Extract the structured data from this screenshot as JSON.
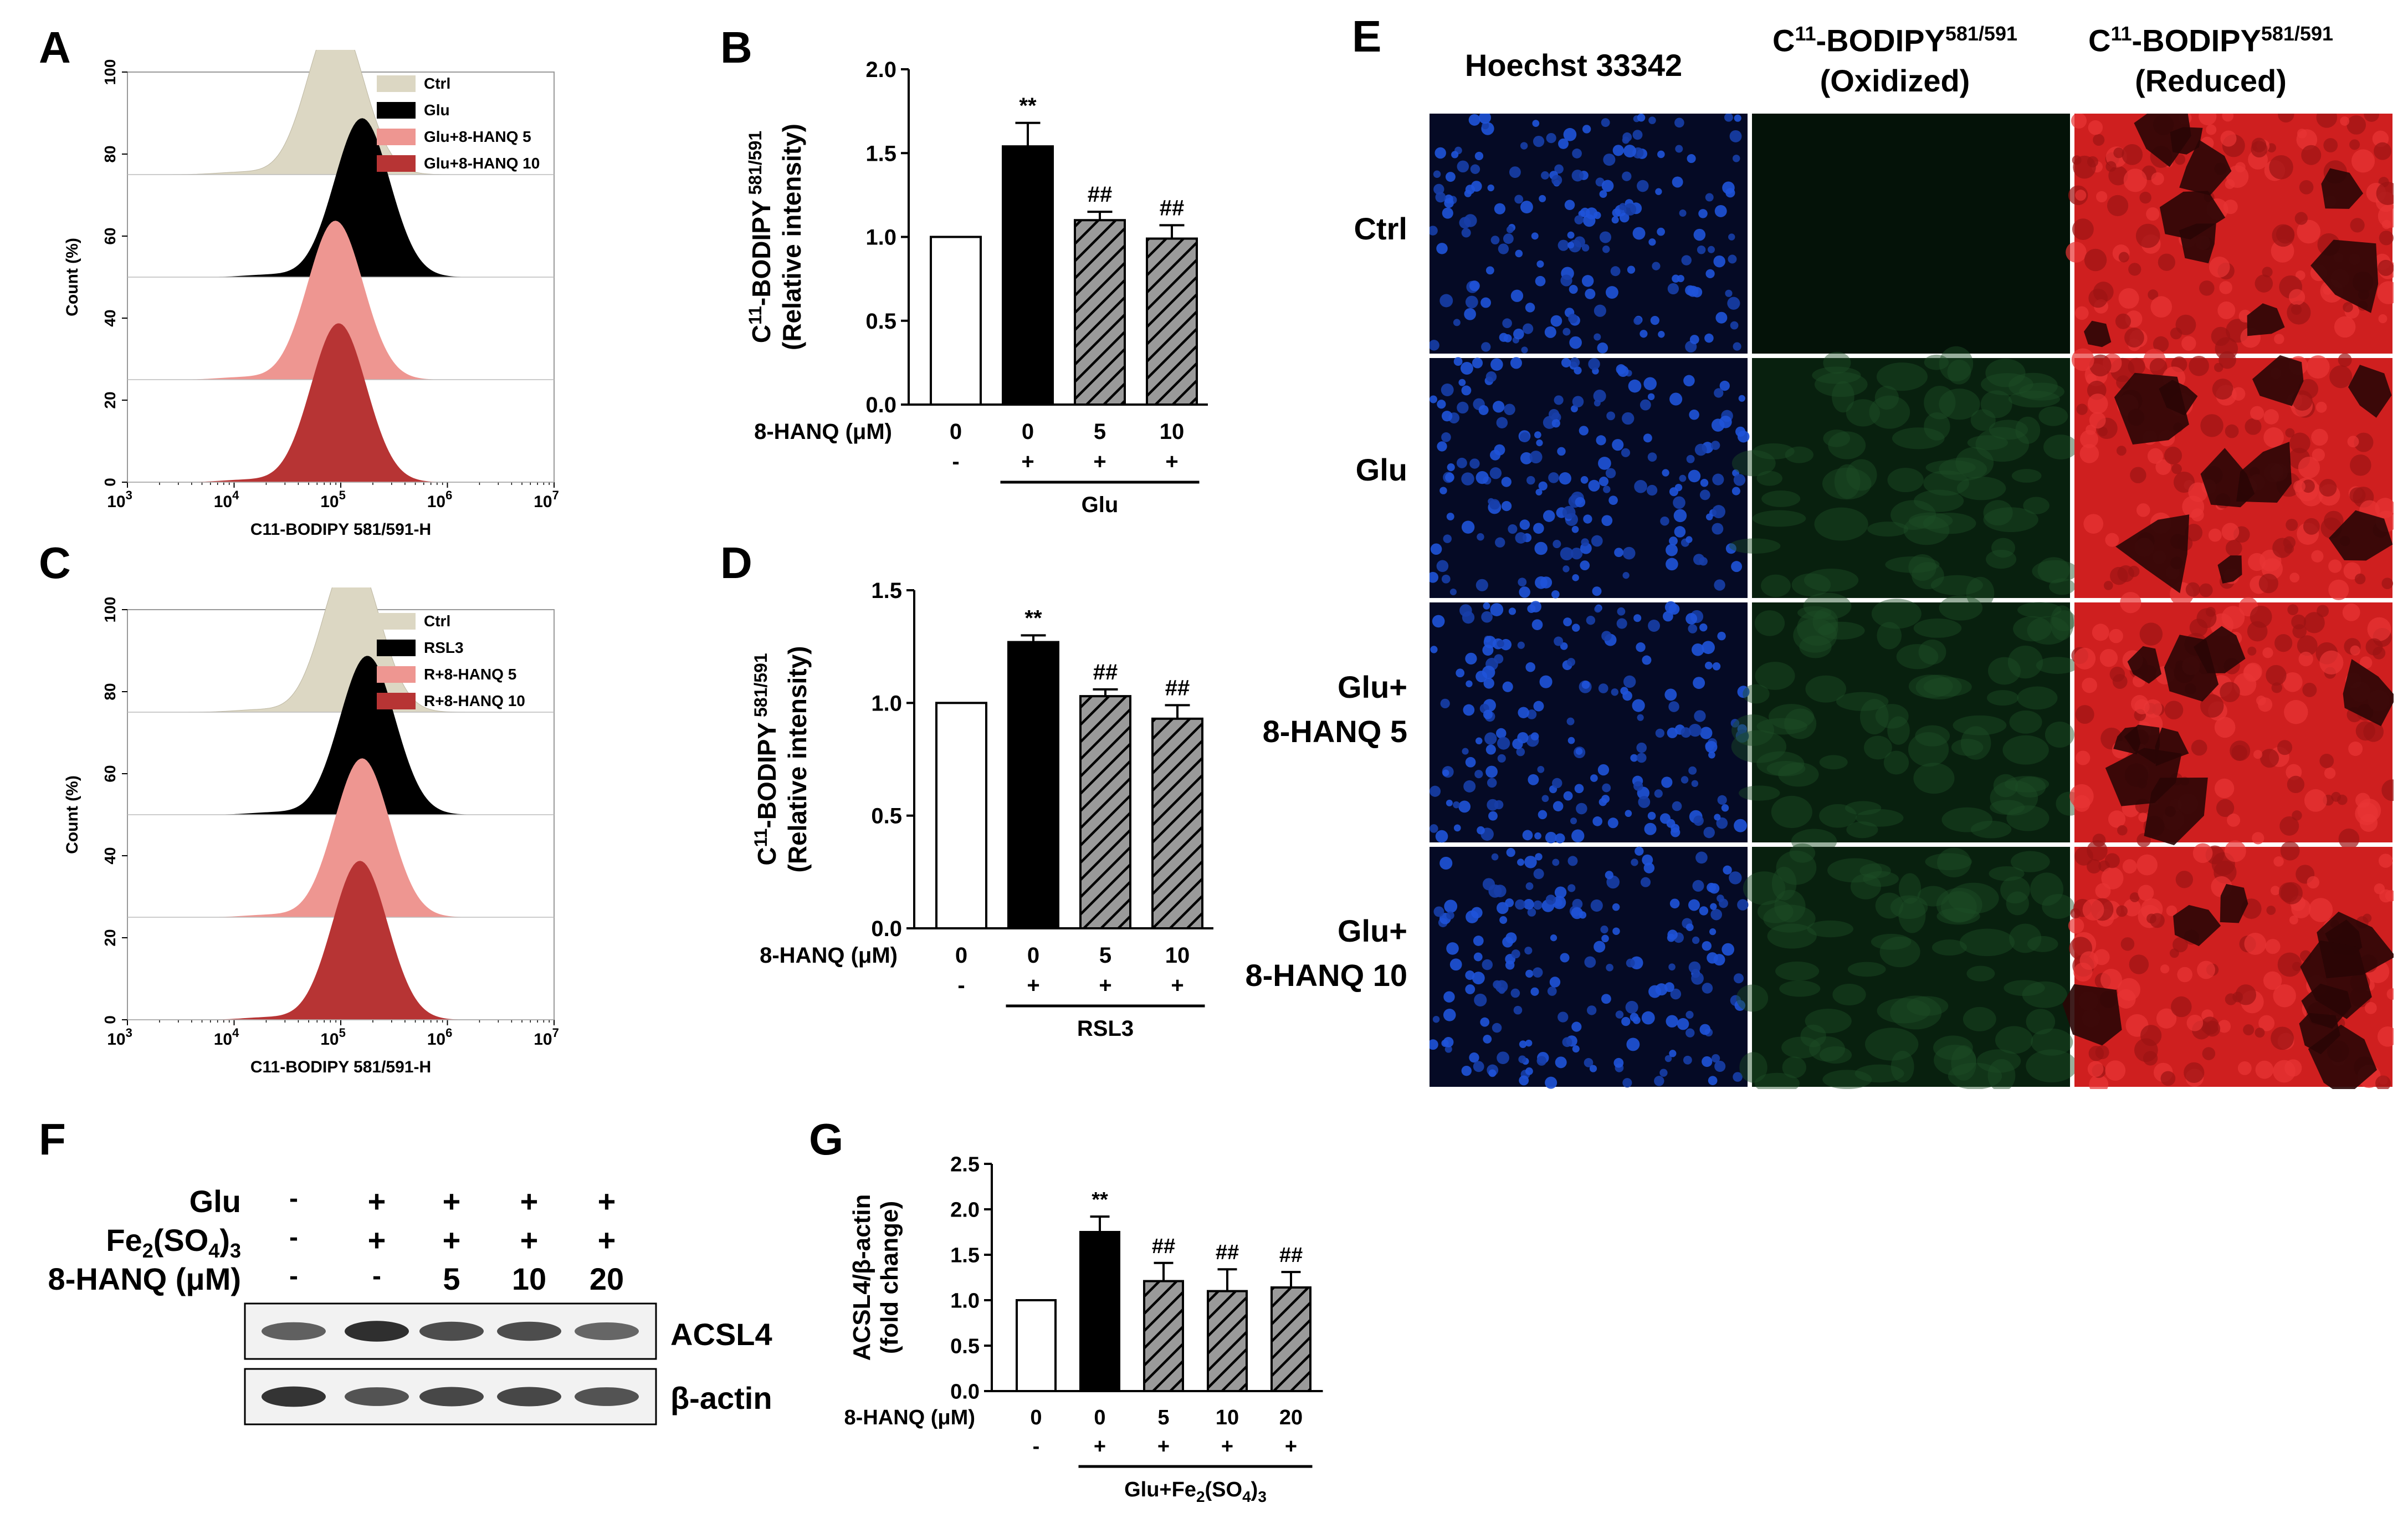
{
  "panels": {
    "A": "A",
    "B": "B",
    "C": "C",
    "D": "D",
    "E": "E",
    "F": "F",
    "G": "G"
  },
  "colors": {
    "ctrl": "#dcd7c3",
    "treat": "#000000",
    "low": "#ee9691",
    "high": "#b73434",
    "hatch_fill": "#9a9a9a"
  },
  "hist_A": {
    "xlabel": "C11-BODIPY 581/591-H",
    "ylabel": "Count (%)",
    "yticks": [
      "0",
      "20",
      "40",
      "60",
      "80",
      "100"
    ],
    "xtick_base": "10",
    "xtick_exps": [
      "3",
      "4",
      "5",
      "6",
      "7"
    ],
    "legend": [
      "Ctrl",
      "Glu",
      "Glu+8-HANQ 5",
      "Glu+8-HANQ 10"
    ],
    "peaks": [
      4.95,
      5.2,
      4.95,
      4.98
    ]
  },
  "hist_C": {
    "xlabel": "C11-BODIPY 581/591-H",
    "ylabel": "Count (%)",
    "yticks": [
      "0",
      "20",
      "40",
      "60",
      "80",
      "100"
    ],
    "xtick_base": "10",
    "xtick_exps": [
      "3",
      "4",
      "5",
      "6",
      "7"
    ],
    "legend": [
      "Ctrl",
      "RSL3",
      "R+8-HANQ 5",
      "R+8-HANQ 10"
    ],
    "peaks": [
      5.1,
      5.25,
      5.2,
      5.18
    ]
  },
  "chart_data": [
    {
      "type": "bar",
      "panel": "B",
      "ylabel_line1": "C",
      "ylabel_sup": "11",
      "ylabel_line1b": "-BODIPY",
      "ylabel_sup2": "581/591",
      "ylabel_line2": "(Relative intensity)",
      "yticks": [
        "0.0",
        "0.5",
        "1.0",
        "1.5",
        "2.0"
      ],
      "ylim": [
        0,
        2
      ],
      "row_label": "8-HANQ (μM)",
      "categories": [
        "0",
        "0",
        "5",
        "10"
      ],
      "values": [
        1.0,
        1.54,
        1.1,
        0.99
      ],
      "errors": [
        0,
        0.14,
        0.05,
        0.08
      ],
      "treatment_signs": [
        "-",
        "+",
        "+",
        "+"
      ],
      "treatment": "Glu",
      "annotations": [
        "",
        "**",
        "##",
        "##"
      ]
    },
    {
      "type": "bar",
      "panel": "D",
      "ylabel_line1": "C",
      "ylabel_sup": "11",
      "ylabel_line1b": "-BODIPY",
      "ylabel_sup2": "581/591",
      "ylabel_line2": "(Relative intensity)",
      "yticks": [
        "0.0",
        "0.5",
        "1.0",
        "1.5"
      ],
      "ylim": [
        0,
        1.5
      ],
      "row_label": "8-HANQ (μM)",
      "categories": [
        "0",
        "0",
        "5",
        "10"
      ],
      "values": [
        1.0,
        1.27,
        1.03,
        0.93
      ],
      "errors": [
        0,
        0.03,
        0.03,
        0.06
      ],
      "treatment_signs": [
        "-",
        "+",
        "+",
        "+"
      ],
      "treatment": "RSL3",
      "annotations": [
        "",
        "**",
        "##",
        "##"
      ]
    },
    {
      "type": "bar",
      "panel": "G",
      "ylabel_line1": "ACSL4/β-actin",
      "ylabel_line2": "(fold change)",
      "yticks": [
        "0.0",
        "0.5",
        "1.0",
        "1.5",
        "2.0",
        "2.5"
      ],
      "ylim": [
        0,
        2.5
      ],
      "row_label": "8-HANQ (μM)",
      "categories": [
        "0",
        "0",
        "5",
        "10",
        "20"
      ],
      "values": [
        1.0,
        1.75,
        1.21,
        1.1,
        1.14
      ],
      "errors": [
        0,
        0.17,
        0.2,
        0.24,
        0.17
      ],
      "treatment_signs": [
        "-",
        "+",
        "+",
        "+",
        "+"
      ],
      "treatment_main": "Glu+Fe",
      "treatment_sub": "2",
      "treatment_mid": "(SO",
      "treatment_sub2": "4",
      "treatment_end": ")",
      "treatment_sub3": "3",
      "annotations": [
        "",
        "**",
        "##",
        "##",
        "##"
      ]
    }
  ],
  "imaging": {
    "columns": [
      "Hoechst 33342",
      "C",
      "C"
    ],
    "col2_sup": "11",
    "col2_main": "-BODIPY",
    "col2_sup2": "581/591",
    "col2_line2": "(Oxidized)",
    "col3_sup": "11",
    "col3_main": "-BODIPY",
    "col3_sup2": "581/591",
    "col3_line2": "(Reduced)",
    "rows": [
      [
        "Ctrl"
      ],
      [
        "Glu"
      ],
      [
        "Glu+",
        "8-HANQ 5"
      ],
      [
        "Glu+",
        "8-HANQ 10"
      ]
    ]
  },
  "blot": {
    "rows": [
      {
        "label": "Glu",
        "signs": [
          "-",
          "+",
          "+",
          "+",
          "+"
        ]
      },
      {
        "label": "Fe",
        "label_sub": "2",
        "label_mid": "(SO",
        "label_sub2": "4",
        "label_end": ")",
        "label_sub3": "3",
        "signs": [
          "-",
          "+",
          "+",
          "+",
          "+"
        ]
      },
      {
        "label": "8-HANQ (μM)",
        "signs": [
          "-",
          "-",
          "5",
          "10",
          "20"
        ]
      }
    ],
    "bands": [
      "ACSL4",
      "β-actin"
    ]
  }
}
